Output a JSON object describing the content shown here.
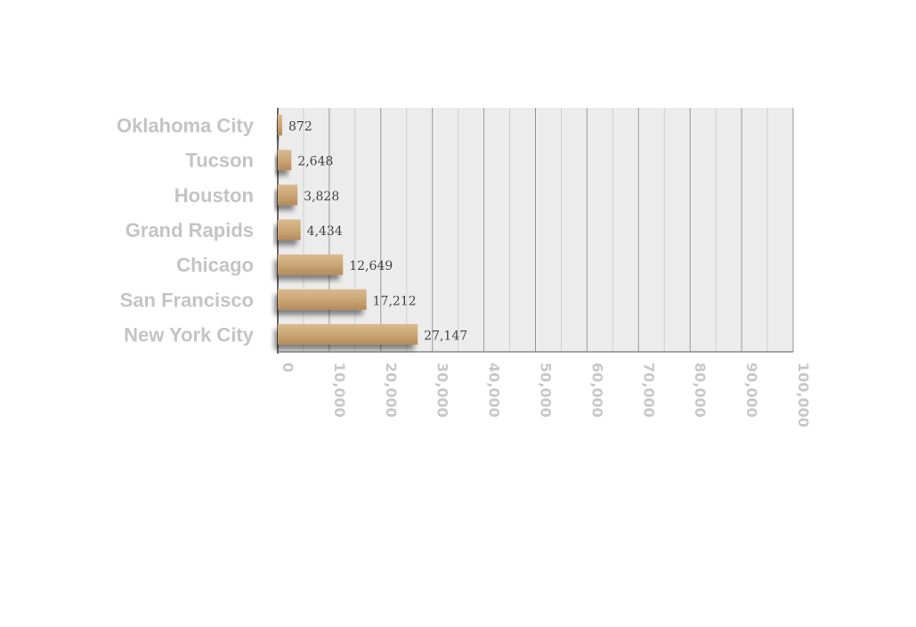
{
  "chart_data": {
    "type": "bar",
    "orientation": "horizontal",
    "categories": [
      "Oklahoma City",
      "Tucson",
      "Houston",
      "Grand Rapids",
      "Chicago",
      "San Francisco",
      "New York City"
    ],
    "values": [
      872,
      2648,
      3828,
      4434,
      12649,
      17212,
      27147
    ],
    "value_labels": [
      "872",
      "2,648",
      "3,828",
      "4,434",
      "12,649",
      "17,212",
      "27,147"
    ],
    "xlim": [
      0,
      100000
    ],
    "x_ticks": [
      0,
      10000,
      20000,
      30000,
      40000,
      50000,
      60000,
      70000,
      80000,
      90000,
      100000
    ],
    "x_tick_labels": [
      "0",
      "10,000",
      "20,000",
      "30,000",
      "40,000",
      "50,000",
      "60,000",
      "70,000",
      "80,000",
      "90,000",
      "100,000"
    ],
    "grid": true,
    "colors": {
      "bar_top": "#d9b98e",
      "bar_bottom": "#b48a5a",
      "plot_background": "#ececec",
      "major_grid": "#9a9a9a",
      "minor_grid": "#d0d0d0",
      "axis_label": "#c4c4c4"
    }
  }
}
